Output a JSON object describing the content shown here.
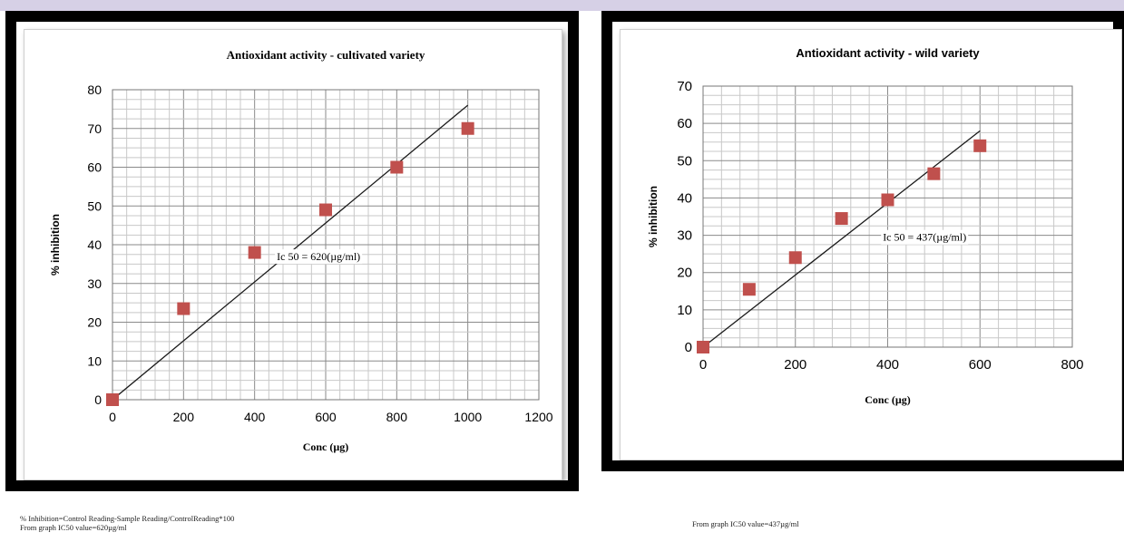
{
  "chart_data": [
    {
      "type": "scatter",
      "title": "Antioxidant activity - cultivated variety",
      "xlabel": "Conc (µg)",
      "ylabel": "% inhibition",
      "xlim": [
        0,
        1200
      ],
      "ylim": [
        0,
        80
      ],
      "xticks": [
        "0",
        "200",
        "400",
        "600",
        "800",
        "1000",
        "1200"
      ],
      "yticks": [
        "0",
        "10",
        "20",
        "30",
        "40",
        "50",
        "60",
        "70",
        "80"
      ],
      "grid": true,
      "x": [
        0,
        200,
        400,
        600,
        800,
        1000
      ],
      "y": [
        0,
        23.5,
        38,
        49,
        60,
        70
      ],
      "trendline": {
        "x": [
          0,
          1000
        ],
        "y": [
          0,
          76
        ]
      },
      "annotation": "Ic 50 = 620(µg/ml)",
      "marker_color": "#c0504d"
    },
    {
      "type": "scatter",
      "title": "Antioxidant activity - wild variety",
      "xlabel": "Conc (µg)",
      "ylabel": "% inhibition",
      "xlim": [
        0,
        800
      ],
      "ylim": [
        0,
        70
      ],
      "xticks": [
        "0",
        "200",
        "400",
        "600",
        "800"
      ],
      "yticks": [
        "0",
        "10",
        "20",
        "30",
        "40",
        "50",
        "60",
        "70"
      ],
      "grid": true,
      "x": [
        0,
        100,
        200,
        300,
        400,
        500,
        600
      ],
      "y": [
        0,
        15.5,
        24,
        34.5,
        39.5,
        46.5,
        54
      ],
      "trendline": {
        "x": [
          0,
          600
        ],
        "y": [
          0,
          58
        ]
      },
      "annotation": "Ic 50 = 437(µg/ml)",
      "marker_color": "#c0504d"
    }
  ],
  "notes": {
    "left_line1": "% Inhibition=Control Reading-Sample Reading/ControlReading*100",
    "left_line2": "From graph IC50 value=620µg/ml",
    "right_line1": "From graph IC50 value=437µg/ml"
  }
}
